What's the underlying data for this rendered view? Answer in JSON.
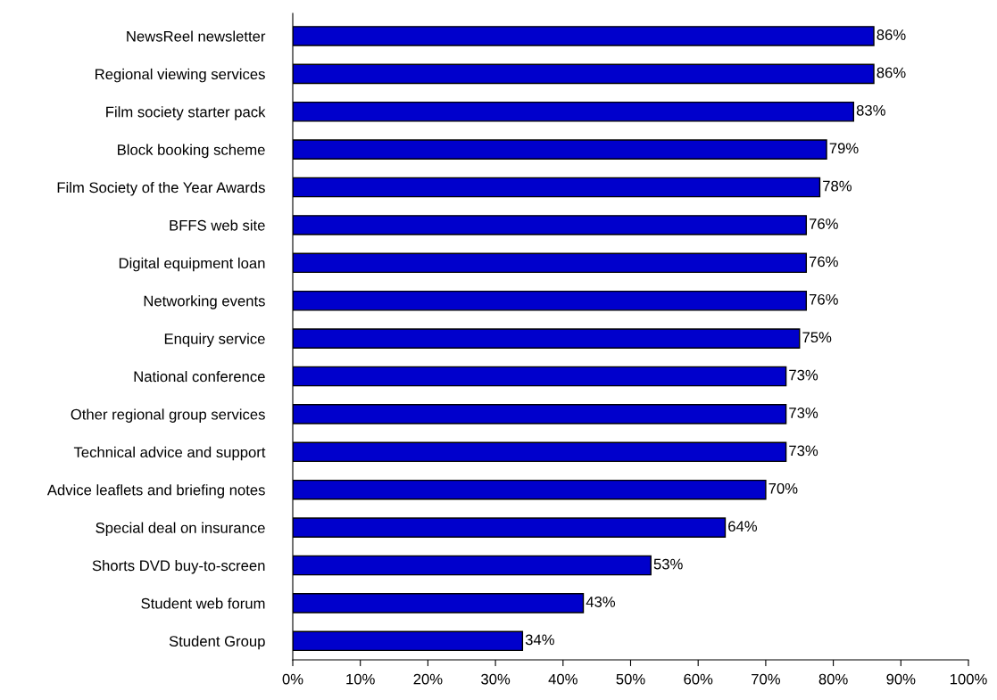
{
  "chart_data": {
    "type": "bar",
    "orientation": "horizontal",
    "categories": [
      "NewsReel newsletter",
      "Regional viewing services",
      "Film society starter pack",
      "Block booking scheme",
      "Film Society of the Year Awards",
      "BFFS web site",
      "Digital equipment loan",
      "Networking events",
      "Enquiry service",
      "National conference",
      "Other regional group services",
      "Technical advice and support",
      "Advice leaflets and briefing notes",
      "Special deal on insurance",
      "Shorts DVD buy-to-screen",
      "Student web forum",
      "Student Group"
    ],
    "values": [
      86,
      86,
      83,
      79,
      78,
      76,
      76,
      76,
      75,
      73,
      73,
      73,
      70,
      64,
      53,
      43,
      34
    ],
    "value_labels": [
      "86%",
      "86%",
      "83%",
      "79%",
      "78%",
      "76%",
      "76%",
      "76%",
      "75%",
      "73%",
      "73%",
      "73%",
      "70%",
      "64%",
      "53%",
      "43%",
      "34%"
    ],
    "color": "#0000cc",
    "xlim": [
      0,
      100
    ],
    "xticks": [
      {
        "value": 0,
        "label": "0%"
      },
      {
        "value": 10,
        "label": "10%"
      },
      {
        "value": 20,
        "label": "20%"
      },
      {
        "value": 30,
        "label": "30%"
      },
      {
        "value": 40,
        "label": "40%"
      },
      {
        "value": 50,
        "label": "50%"
      },
      {
        "value": 60,
        "label": "60%"
      },
      {
        "value": 70,
        "label": "70%"
      },
      {
        "value": 80,
        "label": "80%"
      },
      {
        "value": 90,
        "label": "90%"
      },
      {
        "value": 100,
        "label": "100%"
      }
    ],
    "grid": false,
    "legend": false
  }
}
